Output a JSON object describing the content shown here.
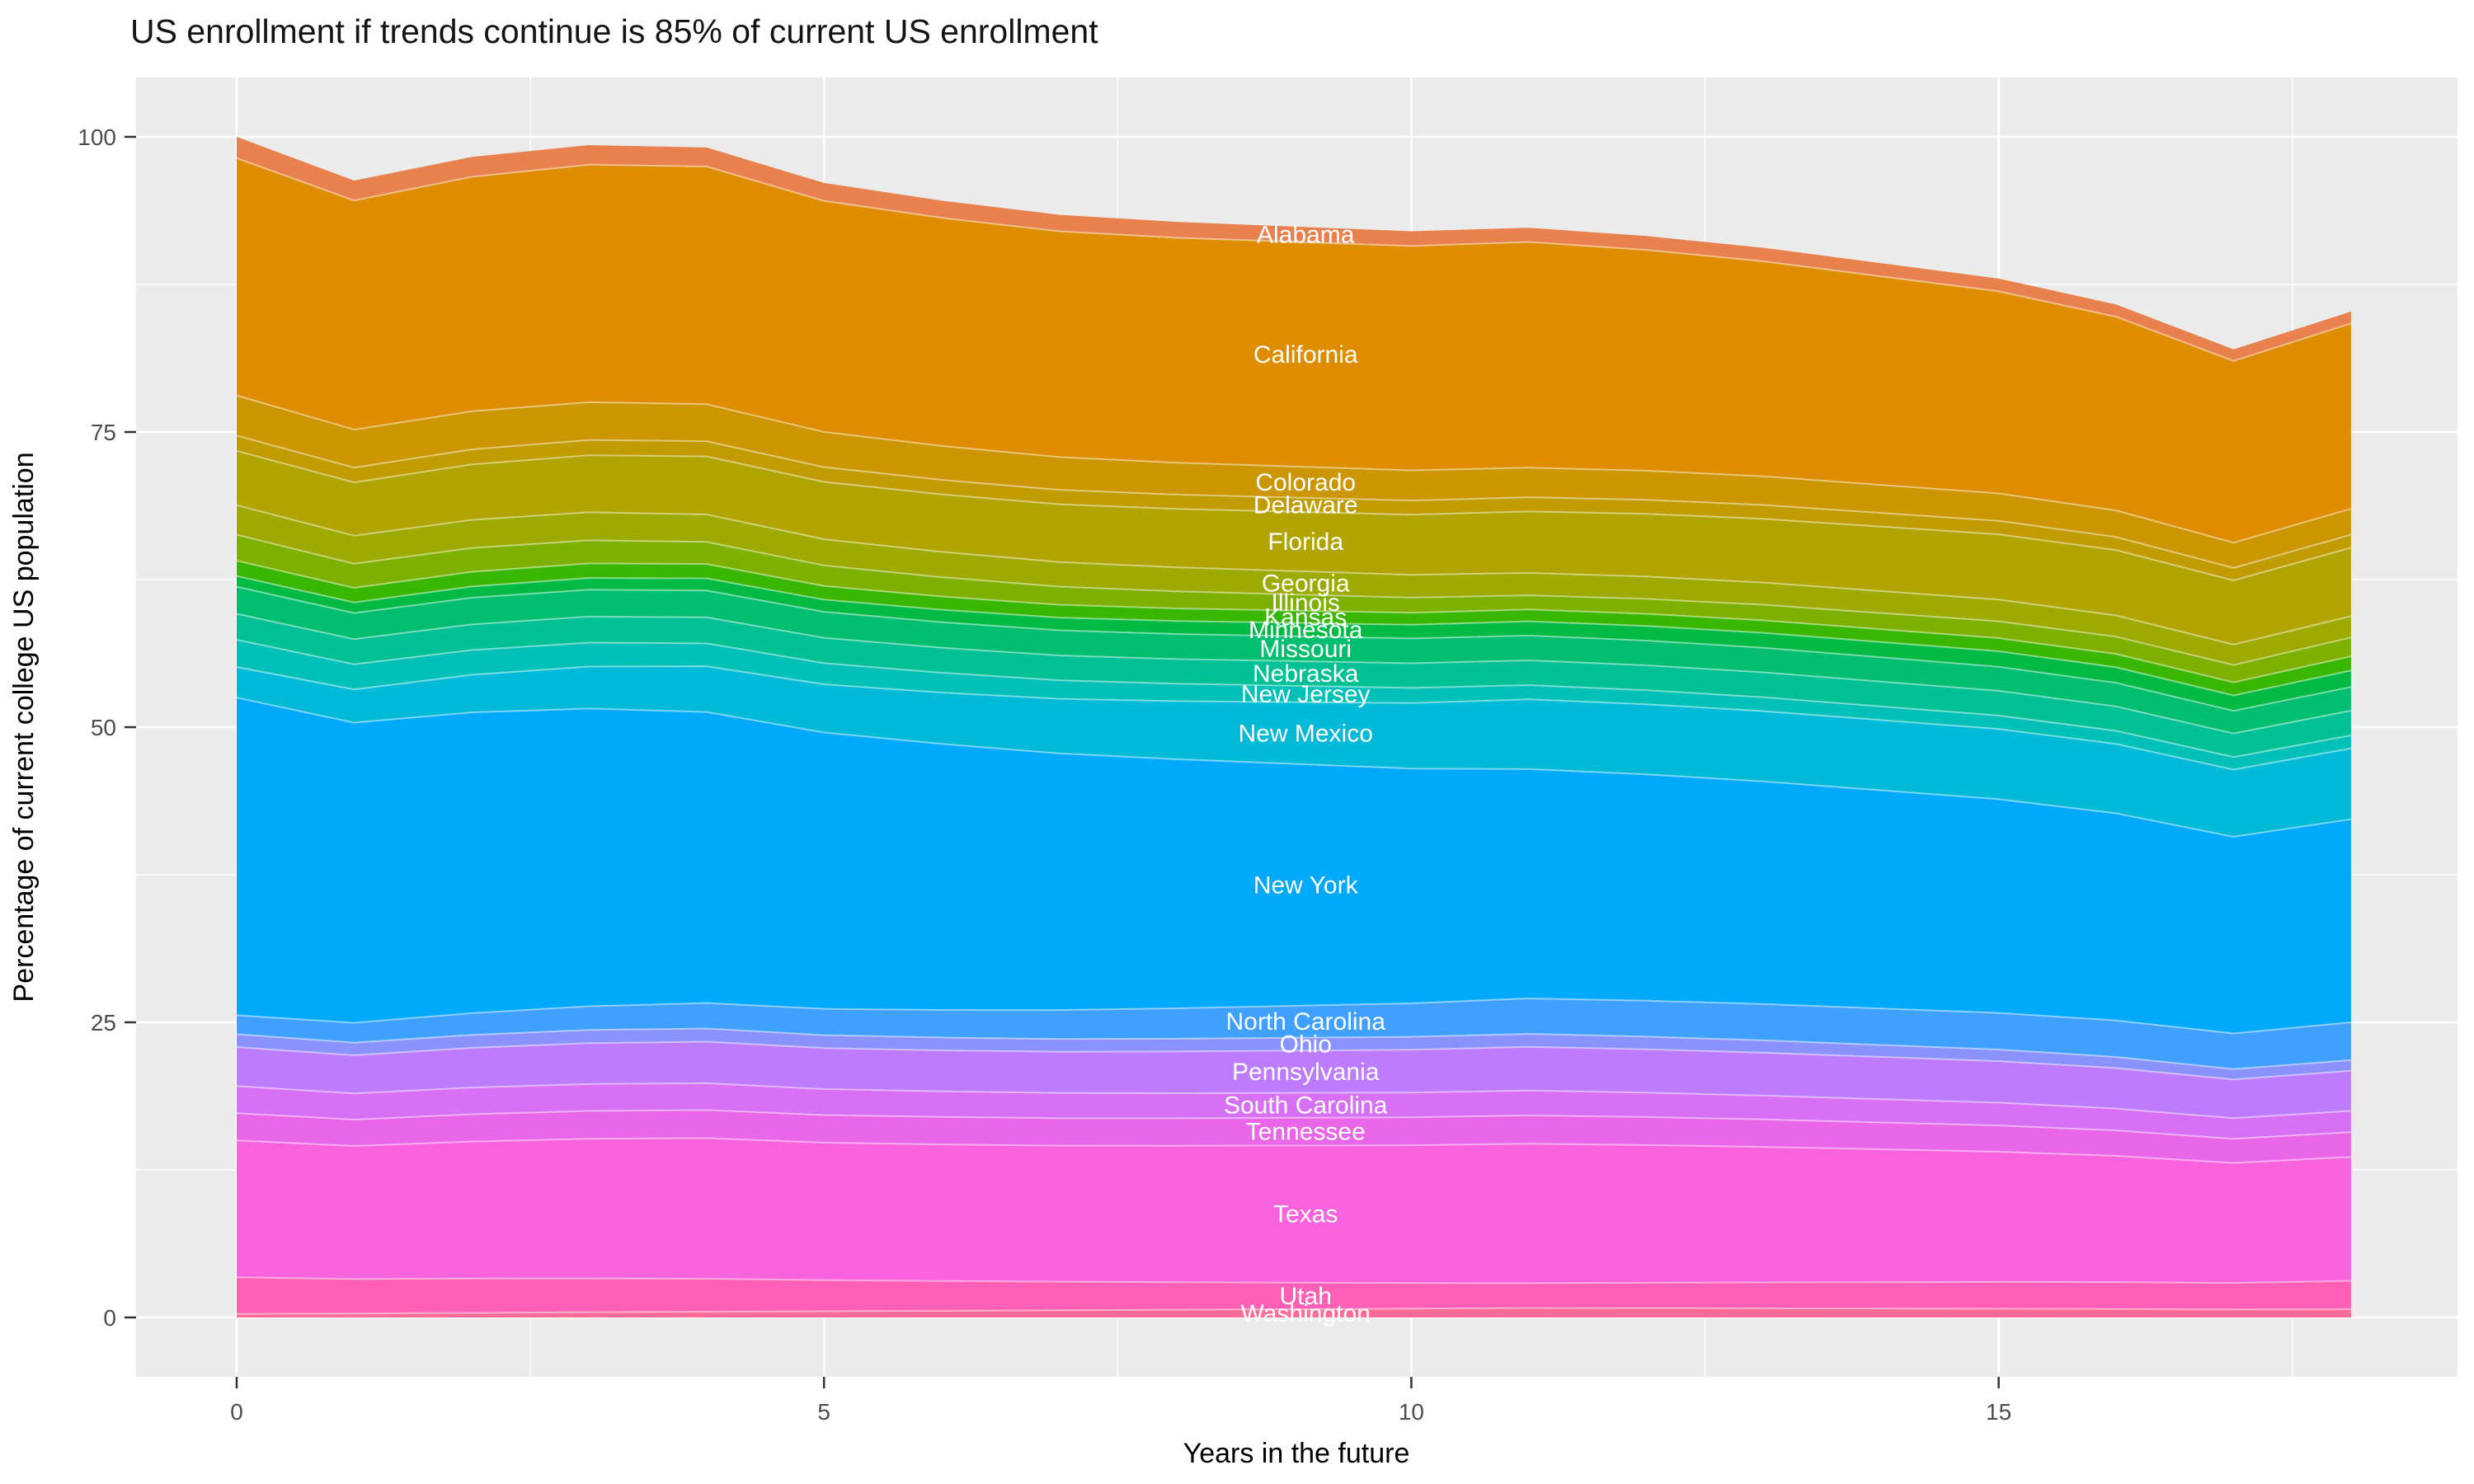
{
  "title": "US enrollment if trends continue is 85% of current US enrollment",
  "axes": {
    "x_label": "Years in the future",
    "y_label": "Percentage of current college US population",
    "x_tick_labels": [
      "0",
      "5",
      "10",
      "15"
    ],
    "x_tick_values": [
      0,
      5,
      10,
      15
    ],
    "x_minor_values": [
      2.5,
      7.5,
      12.5,
      17.5
    ],
    "y_tick_labels": [
      "0",
      "25",
      "50",
      "75",
      "100"
    ],
    "y_tick_values": [
      0,
      25,
      50,
      75,
      100
    ],
    "y_minor_values": [
      12.5,
      37.5,
      62.5,
      87.5
    ]
  },
  "colors": {
    "panel_background": "#EBEBEB",
    "grid_major": "#FFFFFF",
    "grid_minor": "#FFFFFF",
    "tick_mark": "#333333",
    "label_text": "#FFFFFF"
  },
  "chart_data": {
    "type": "area",
    "stacked": true,
    "grid": true,
    "legend": false,
    "x_range": [
      0,
      18
    ],
    "y_range": [
      0,
      100
    ],
    "x": [
      0,
      1,
      2,
      3,
      4,
      5,
      6,
      7,
      8,
      9,
      10,
      11,
      12,
      13,
      14,
      15,
      16,
      17,
      18
    ],
    "totals": [
      100,
      96.3,
      98.3,
      99.3,
      99.1,
      96.1,
      94.6,
      93.4,
      92.8,
      92.4,
      92.0,
      92.3,
      91.6,
      90.6,
      89.3,
      88.0,
      85.8,
      82.0,
      85.2
    ],
    "anchor_years": [
      0,
      11,
      18
    ],
    "interpolation": "linear between anchor_years, rescaled each year so the stack sum equals totals",
    "label_year": 9.1,
    "series": [
      {
        "name": "Alabama",
        "color": "#E8814E",
        "anchors": [
          1.8,
          1.2,
          1.0
        ]
      },
      {
        "name": "California",
        "color": "#DE8C00",
        "anchors": [
          20.1,
          19.1,
          15.7
        ]
      },
      {
        "name": "Colorado",
        "color": "#CC9600",
        "anchors": [
          3.4,
          2.5,
          2.2
        ]
      },
      {
        "name": "Delaware",
        "color": "#C19C00",
        "anchors": [
          1.3,
          1.2,
          1.1
        ]
      },
      {
        "name": "Florida",
        "color": "#B1A400",
        "anchors": [
          4.6,
          5.2,
          5.8
        ]
      },
      {
        "name": "Georgia",
        "color": "#9DAA00",
        "anchors": [
          2.5,
          1.9,
          1.8
        ]
      },
      {
        "name": "Illinois",
        "color": "#7EB000",
        "anchors": [
          2.2,
          1.2,
          1.6
        ]
      },
      {
        "name": "Kansas",
        "color": "#39B700",
        "anchors": [
          1.3,
          1.0,
          1.2
        ]
      },
      {
        "name": "Minnesota",
        "color": "#00BA44",
        "anchors": [
          0.9,
          1.2,
          1.4
        ]
      },
      {
        "name": "Missouri",
        "color": "#00BE70",
        "anchors": [
          2.3,
          2.1,
          2.0
        ]
      },
      {
        "name": "Nebraska",
        "color": "#00C095",
        "anchors": [
          2.2,
          2.1,
          2.1
        ]
      },
      {
        "name": "New Jersey",
        "color": "#00C0B8",
        "anchors": [
          2.3,
          1.2,
          1.1
        ]
      },
      {
        "name": "New Mexico",
        "color": "#00BAD8",
        "anchors": [
          2.6,
          5.9,
          6.0
        ]
      },
      {
        "name": "New York",
        "color": "#00A9FB",
        "anchors": [
          26.9,
          19.4,
          17.2
        ]
      },
      {
        "name": "North Carolina",
        "color": "#3FA0FF",
        "anchors": [
          1.6,
          3.0,
          3.2
        ]
      },
      {
        "name": "Ohio",
        "color": "#8A92FF",
        "anchors": [
          1.1,
          1.1,
          0.9
        ]
      },
      {
        "name": "Pennsylvania",
        "color": "#BD7BFF",
        "anchors": [
          3.3,
          3.7,
          3.4
        ]
      },
      {
        "name": "South Carolina",
        "color": "#D870F6",
        "anchors": [
          2.3,
          2.1,
          1.8
        ]
      },
      {
        "name": "Tennessee",
        "color": "#E966E9",
        "anchors": [
          2.3,
          2.4,
          2.1
        ]
      },
      {
        "name": "Texas",
        "color": "#F962DD",
        "anchors": [
          11.6,
          11.8,
          10.5
        ]
      },
      {
        "name": "Utah",
        "color": "#FF5FB4",
        "anchors": [
          3.1,
          2.1,
          2.4
        ]
      },
      {
        "name": "Washington",
        "color": "#FF6B97",
        "anchors": [
          0.3,
          0.8,
          0.7
        ]
      }
    ]
  }
}
